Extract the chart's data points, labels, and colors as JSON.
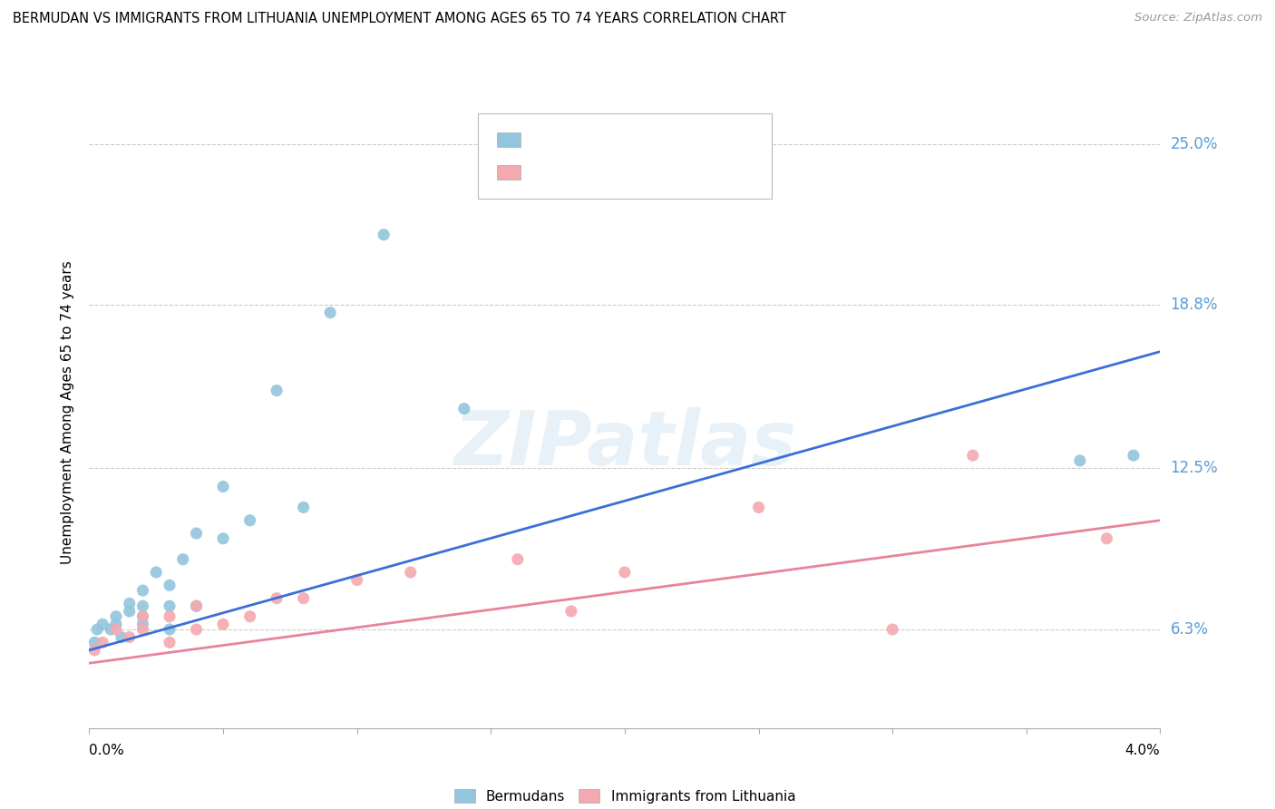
{
  "title": "BERMUDAN VS IMMIGRANTS FROM LITHUANIA UNEMPLOYMENT AMONG AGES 65 TO 74 YEARS CORRELATION CHART",
  "source": "Source: ZipAtlas.com",
  "ylabel": "Unemployment Among Ages 65 to 74 years",
  "ytick_vals": [
    0.063,
    0.125,
    0.188,
    0.25
  ],
  "ytick_labels": [
    "6.3%",
    "12.5%",
    "18.8%",
    "25.0%"
  ],
  "xmin": 0.0,
  "xmax": 0.04,
  "ymin": 0.025,
  "ymax": 0.268,
  "bermudans_color": "#92c5de",
  "lithuania_color": "#f4a9b0",
  "trendline_blue": "#3a6fd8",
  "trendline_pink": "#e8849a",
  "watermark": "ZIPatlas",
  "bermudans_x": [
    0.0002,
    0.0003,
    0.0005,
    0.0008,
    0.001,
    0.001,
    0.0012,
    0.0015,
    0.0015,
    0.002,
    0.002,
    0.002,
    0.002,
    0.0025,
    0.003,
    0.003,
    0.003,
    0.0035,
    0.004,
    0.004,
    0.005,
    0.005,
    0.006,
    0.007,
    0.008,
    0.009,
    0.011,
    0.014,
    0.037,
    0.039
  ],
  "bermudans_y": [
    0.058,
    0.063,
    0.065,
    0.063,
    0.065,
    0.068,
    0.06,
    0.07,
    0.073,
    0.065,
    0.068,
    0.072,
    0.078,
    0.085,
    0.063,
    0.072,
    0.08,
    0.09,
    0.072,
    0.1,
    0.098,
    0.118,
    0.105,
    0.155,
    0.11,
    0.185,
    0.215,
    0.148,
    0.128,
    0.13
  ],
  "lithuania_x": [
    0.0002,
    0.0005,
    0.001,
    0.0015,
    0.002,
    0.002,
    0.003,
    0.003,
    0.004,
    0.004,
    0.005,
    0.006,
    0.007,
    0.008,
    0.01,
    0.012,
    0.016,
    0.018,
    0.02,
    0.025,
    0.03,
    0.033,
    0.038
  ],
  "lithuania_y": [
    0.055,
    0.058,
    0.063,
    0.06,
    0.063,
    0.068,
    0.058,
    0.068,
    0.063,
    0.072,
    0.065,
    0.068,
    0.075,
    0.075,
    0.082,
    0.085,
    0.09,
    0.07,
    0.085,
    0.11,
    0.063,
    0.13,
    0.098
  ],
  "blue_line_x": [
    0.0,
    0.04
  ],
  "blue_line_y": [
    0.055,
    0.17
  ],
  "pink_line_x": [
    0.0,
    0.04
  ],
  "pink_line_y": [
    0.05,
    0.105
  ]
}
